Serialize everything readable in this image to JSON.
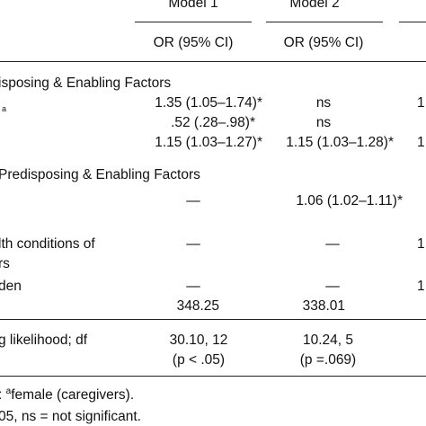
{
  "table": {
    "headers": {
      "model1": "Model 1",
      "model2": "Model 2",
      "or_label_1": "OR (95% CI)",
      "or_label_2": "OR (95% CI)"
    },
    "sections": [
      {
        "title": "isposing & Enabling Factors",
        "rows": [
          {
            "label_sup": "a",
            "model1": "1.35 (1.05–1.74)*",
            "model2": "ns",
            "model3": "1"
          },
          {
            "model1": ".52 (.28–.98)*",
            "model2": "ns"
          },
          {
            "model1": "1.15 (1.03–1.27)*",
            "model2": "1.15 (1.03–1.28)*",
            "model3": "1"
          }
        ]
      },
      {
        "title": " Predisposing & Enabling Factors",
        "rows": [
          {
            "model1": "—",
            "model2": "1.06 (1.02–1.11)*"
          },
          {
            "label_line1": "lth conditions of",
            "label_line2": "rs",
            "model1": "—",
            "model2": "—",
            "model3": "1"
          },
          {
            "label": "den",
            "model1": "—",
            "model2": "—",
            "model3": "1"
          }
        ]
      }
    ],
    "stat_row": {
      "model1": "348.25",
      "model2": "338.01"
    },
    "likelihood_row": {
      "label": "g likelihood; df",
      "model1_line1": "30.10, 12",
      "model1_line2": "(p < .05)",
      "model2_line1": "10.24, 5",
      "model2_line2": "(p =.069)"
    },
    "footnotes": {
      "line1_prefix": ": ",
      "line1_sup": "a",
      "line1_text": "female (caregivers).",
      "line2": "05, ns = not significant."
    }
  }
}
